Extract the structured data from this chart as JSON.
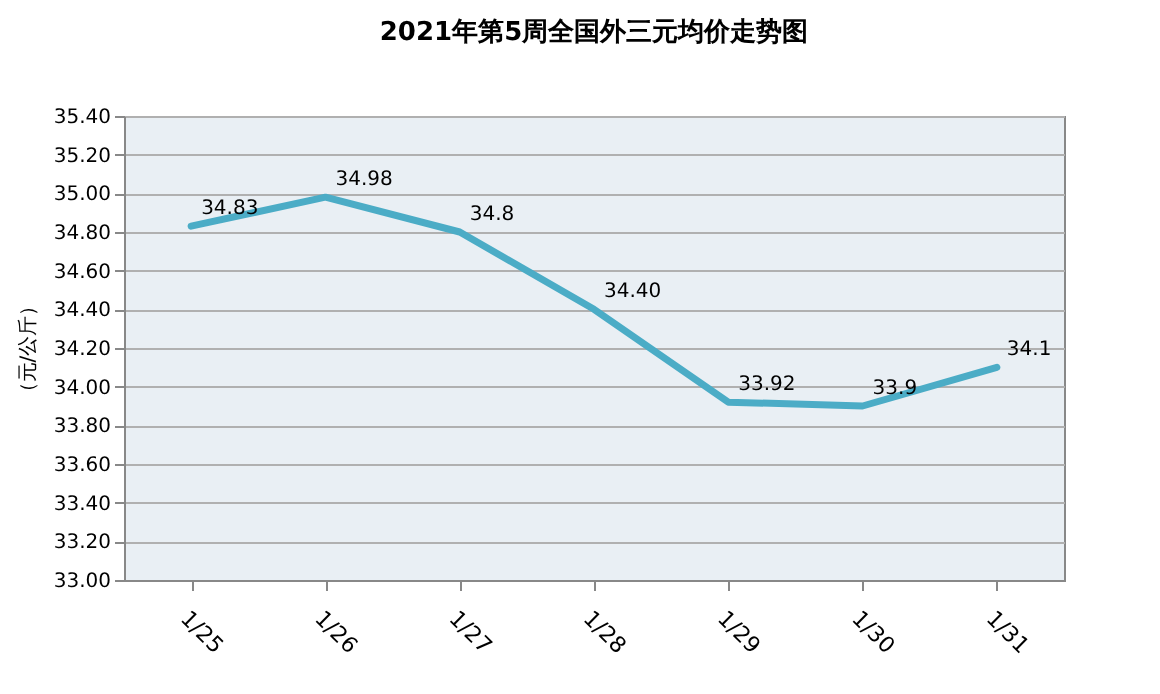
{
  "chart_data": {
    "type": "line",
    "title": "2021年第5周全国外三元均价走势图",
    "ylabel": "（元/公斤）",
    "categories": [
      "1/25",
      "1/26",
      "1/27",
      "1/28",
      "1/29",
      "1/30",
      "1/31"
    ],
    "series": [
      {
        "color": "#4bacc6",
        "values": [
          34.83,
          34.98,
          34.8,
          34.4,
          33.92,
          33.9,
          34.1
        ],
        "value_labels": [
          "34.83",
          "34.98",
          "34.8",
          "34.40",
          "33.92",
          "33.9",
          "34.1"
        ]
      }
    ],
    "ylim": [
      33.0,
      35.4
    ],
    "yticks": [
      {
        "value": 33.0,
        "label": "33.00"
      },
      {
        "value": 33.2,
        "label": "33.20"
      },
      {
        "value": 33.4,
        "label": "33.40"
      },
      {
        "value": 33.6,
        "label": "33.60"
      },
      {
        "value": 33.8,
        "label": "33.80"
      },
      {
        "value": 34.0,
        "label": "34.00"
      },
      {
        "value": 34.2,
        "label": "34.20"
      },
      {
        "value": 34.4,
        "label": "34.40"
      },
      {
        "value": 34.6,
        "label": "34.60"
      },
      {
        "value": 34.8,
        "label": "34.80"
      },
      {
        "value": 35.0,
        "label": "35.00"
      },
      {
        "value": 35.2,
        "label": "35.20"
      },
      {
        "value": 35.4,
        "label": "35.40"
      }
    ],
    "grid": "y",
    "legend": false,
    "marker": "none",
    "line_style": "solid"
  }
}
